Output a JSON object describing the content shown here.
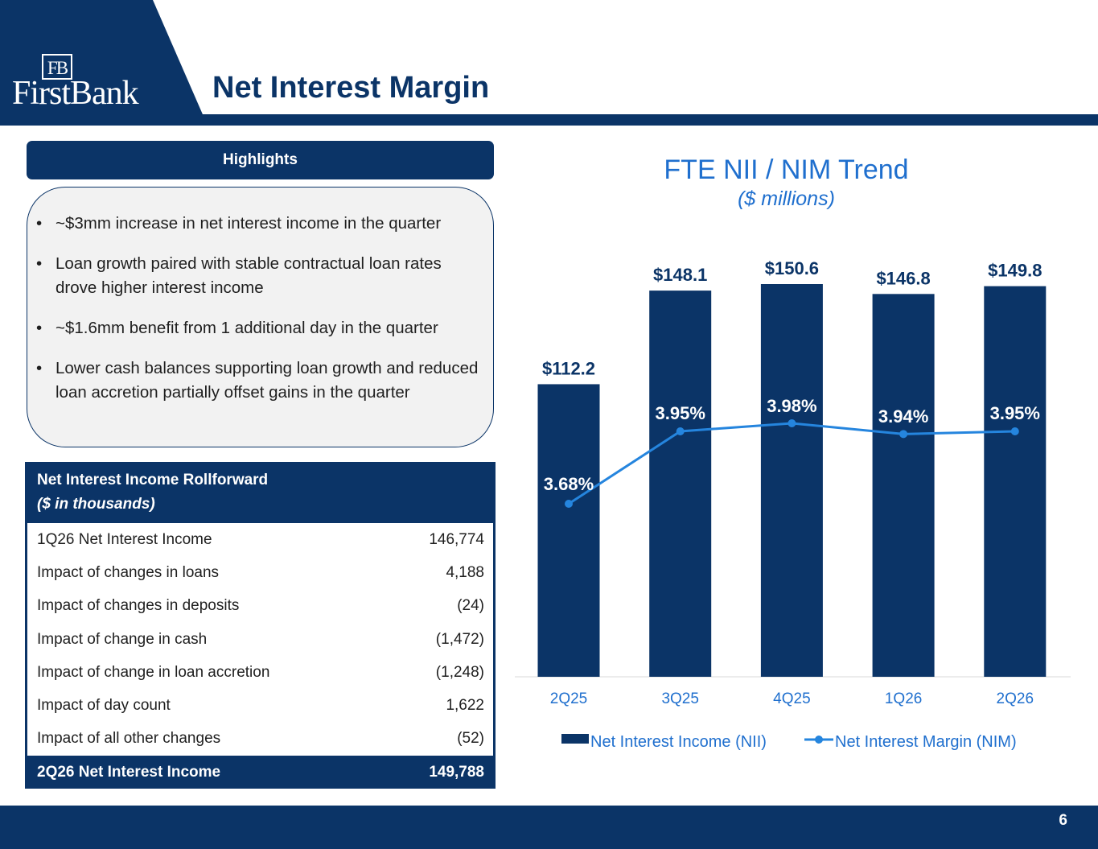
{
  "header": {
    "logo_mono": "FB",
    "logo_word": "FirstBank",
    "title": "Net Interest Margin"
  },
  "highlights": {
    "heading": "Highlights",
    "bullets": [
      "~$3mm increase in net interest income in the quarter",
      "Loan growth paired with stable contractual loan rates drove higher interest income",
      "~$1.6mm benefit from 1 additional day in the quarter",
      "Lower cash balances supporting loan growth and reduced loan accretion partially offset gains in the quarter"
    ]
  },
  "rollforward": {
    "title": "Net Interest Income Rollforward",
    "subtitle": "($ in thousands)",
    "rows": [
      {
        "label": "1Q26 Net Interest Income",
        "value": "146,774"
      },
      {
        "label": "Impact of changes in loans",
        "value": "4,188"
      },
      {
        "label": "Impact of changes in deposits",
        "value": "(24)"
      },
      {
        "label": "Impact of change in cash",
        "value": "(1,472)"
      },
      {
        "label": "Impact of change in loan accretion",
        "value": "(1,248)"
      },
      {
        "label": "Impact of day count",
        "value": "1,622"
      },
      {
        "label": "Impact of all other changes",
        "value": "(52)"
      }
    ],
    "total": {
      "label": "2Q26 Net Interest Income",
      "value": "149,788"
    }
  },
  "chart_data": {
    "type": "bar",
    "title": "FTE NII / NIM Trend",
    "subtitle": "($ millions)",
    "categories": [
      "2Q25",
      "3Q25",
      "4Q25",
      "1Q26",
      "2Q26"
    ],
    "series": [
      {
        "name": "Net Interest Income (NII)",
        "type": "bar",
        "values": [
          112.2,
          148.1,
          150.6,
          146.8,
          149.8
        ],
        "labels": [
          "$112.2",
          "$148.1",
          "$150.6",
          "$146.8",
          "$149.8"
        ],
        "color": "#0b3467"
      },
      {
        "name": "Net Interest Margin (NIM)",
        "type": "line",
        "values": [
          3.68,
          3.95,
          3.98,
          3.94,
          3.95
        ],
        "labels": [
          "3.68%",
          "3.95%",
          "3.98%",
          "3.94%",
          "3.95%"
        ],
        "color": "#2585de"
      }
    ],
    "legend": "bottom",
    "grid": false
  },
  "footer": {
    "page_number": "6"
  },
  "colors": {
    "brand": "#0b3467",
    "accent": "#2585de",
    "panel": "#f2f2f2"
  }
}
